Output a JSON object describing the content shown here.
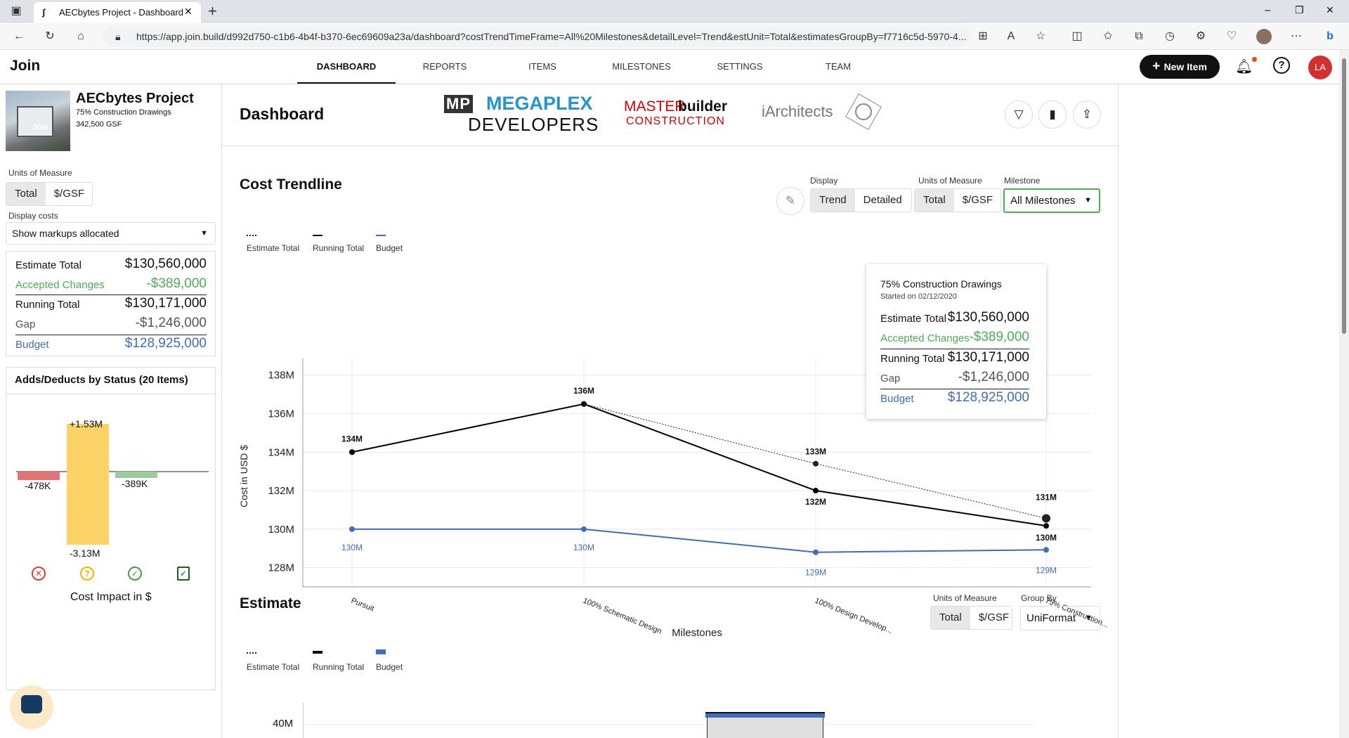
{
  "browser": {
    "tab_title": "AECbytes Project - Dashboard",
    "new_tab": "+",
    "url": "https://app.join.build/d992d750-c1b6-4b4f-b370-6ec69609a23a/dashboard?costTrendTimeFrame=All%20Milestones&detailLevel=Trend&estUnit=Total&estimatesGroupBy=f7716c5d-5970-4...",
    "window_controls": [
      "–",
      "❐",
      "✕"
    ]
  },
  "app": {
    "logo": "Join",
    "nav": [
      "DASHBOARD",
      "REPORTS",
      "ITEMS",
      "MILESTONES",
      "SETTINGS",
      "TEAM"
    ],
    "active_nav": "DASHBOARD",
    "new_item_label": "New Item",
    "avatar_initials": "LA"
  },
  "project": {
    "name": "AECbytes Project",
    "milestone": "75% Construction Drawings",
    "area": "342,500 GSF",
    "thumb_text": "Join"
  },
  "sidebar": {
    "units_label": "Units of Measure",
    "units": [
      "Total",
      "$/GSF"
    ],
    "display_costs_label": "Display costs",
    "display_costs_value": "Show markups allocated",
    "summary": {
      "estimate_label": "Estimate Total",
      "estimate_value": "$130,560,000",
      "accepted_label": "Accepted Changes",
      "accepted_value": "-$389,000",
      "running_label": "Running Total",
      "running_value": "$130,171,000",
      "gap_label": "Gap",
      "gap_value": "-$1,246,000",
      "budget_label": "Budget",
      "budget_value": "$128,925,000"
    },
    "adds_title": "Adds/Deducts by Status (20 Items)",
    "adds_chart": {
      "bars": [
        {
          "status": "rejected",
          "value": -478,
          "label": "-478K",
          "color": "#e57373"
        },
        {
          "status": "pending",
          "add": 1530,
          "deduct": -3130,
          "add_label": "+1.53M",
          "deduct_label": "-3.13M",
          "color": "#fdd266"
        },
        {
          "status": "accepted",
          "value": -389,
          "label": "-389K",
          "color": "#9ccc9c"
        }
      ],
      "caption": "Cost Impact in $"
    }
  },
  "header": {
    "title": "Dashboard",
    "logo1_line1": "MEGAPLEX",
    "logo1_prefix": "MP",
    "logo1_line2": "DEVELOPERS",
    "logo2_a": "MASTER",
    "logo2_b": "builder",
    "logo2_c": "CONSTRUCTION",
    "logo3": "iArchitects"
  },
  "cost_trendline": {
    "title": "Cost Trendline",
    "display_label": "Display",
    "display_options": [
      "Trend",
      "Detailed"
    ],
    "units_label": "Units of Measure",
    "units_options": [
      "Total",
      "$/GSF"
    ],
    "milestone_label": "Milestone",
    "milestone_value": "All Milestones",
    "legend": [
      "Estimate Total",
      "Running Total",
      "Budget"
    ],
    "tooltip": {
      "title": "75% Construction Drawings",
      "subtitle": "Started on 02/12/2020",
      "estimate_label": "Estimate Total",
      "estimate_value": "$130,560,000",
      "accepted_label": "Accepted Changes",
      "accepted_value": "-$389,000",
      "running_label": "Running Total",
      "running_value": "$130,171,000",
      "gap_label": "Gap",
      "gap_value": "-$1,246,000",
      "budget_label": "Budget",
      "budget_value": "$128,925,000"
    }
  },
  "chart_data": {
    "type": "line",
    "title": "",
    "xlabel": "Milestones",
    "ylabel": "Cost in USD $",
    "categories": [
      "Pursuit",
      "100% Schematic Design",
      "100% Design Develop...",
      "75% Construction..."
    ],
    "ylim": [
      127,
      138.5
    ],
    "yticks": [
      128,
      130,
      132,
      134,
      136,
      138
    ],
    "ytick_labels": [
      "128M",
      "130M",
      "132M",
      "134M",
      "136M",
      "138M"
    ],
    "series": [
      {
        "name": "Estimate Total",
        "color": "#222222",
        "style": "dotted",
        "values": [
          134,
          136.5,
          133.4,
          130.56
        ],
        "labels": [
          "",
          "",
          "133M",
          "131M"
        ]
      },
      {
        "name": "Running Total",
        "color": "#000000",
        "style": "solid",
        "values": [
          134,
          136.5,
          132,
          130.17
        ],
        "labels": [
          "134M",
          "136M",
          "132M",
          "130M"
        ]
      },
      {
        "name": "Budget",
        "color": "#3f6cc0",
        "style": "solid",
        "values": [
          130,
          130,
          128.8,
          128.925
        ],
        "labels": [
          "130M",
          "130M",
          "129M",
          "129M"
        ]
      }
    ],
    "grid": true,
    "legend": "top-left"
  },
  "estimate": {
    "title": "Estimate",
    "units_label": "Units of Measure",
    "units_options": [
      "Total",
      "$/GSF"
    ],
    "group_label": "Group By",
    "group_value": "UniFormat",
    "legend": [
      "Estimate Total",
      "Running Total",
      "Budget"
    ],
    "first_tick": "40M"
  }
}
